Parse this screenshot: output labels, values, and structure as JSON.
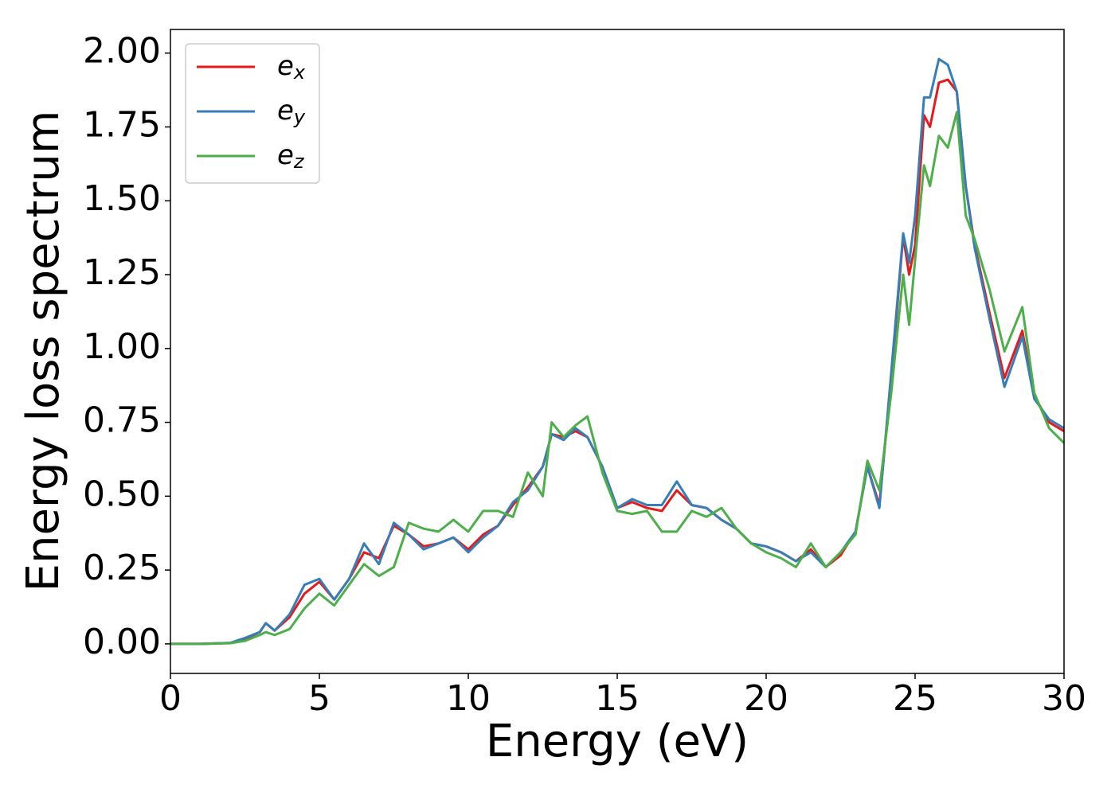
{
  "chart_data": {
    "type": "line",
    "xlabel": "Energy (eV)",
    "ylabel": "Energy loss spectrum",
    "xlim": [
      0,
      30
    ],
    "ylim": [
      -0.1,
      2.08
    ],
    "xticks": [
      0,
      5,
      10,
      15,
      20,
      25,
      30
    ],
    "yticks": [
      {
        "value": 0,
        "label": "0.00"
      },
      {
        "value": 0.25,
        "label": "0.25"
      },
      {
        "value": 0.5,
        "label": "0.50"
      },
      {
        "value": 0.75,
        "label": "0.75"
      },
      {
        "value": 1,
        "label": "1.00"
      },
      {
        "value": 1.25,
        "label": "1.25"
      },
      {
        "value": 1.5,
        "label": "1.50"
      },
      {
        "value": 1.75,
        "label": "1.75"
      },
      {
        "value": 2,
        "label": "2.00"
      }
    ],
    "legend": "upper left",
    "x": [
      0,
      1,
      2,
      2.5,
      3,
      3.2,
      3.5,
      4,
      4.5,
      5,
      5.5,
      6,
      6.5,
      7,
      7.5,
      8,
      8.5,
      9,
      9.5,
      10,
      10.5,
      11,
      11.5,
      12,
      12.5,
      12.8,
      13.2,
      13.6,
      14,
      14.5,
      15,
      15.5,
      16,
      16.5,
      17,
      17.5,
      18,
      18.5,
      19,
      19.5,
      20,
      20.5,
      21,
      21.5,
      22,
      22.5,
      23,
      23.4,
      23.8,
      24.2,
      24.6,
      24.8,
      25,
      25.3,
      25.5,
      25.8,
      26.1,
      26.4,
      26.7,
      27,
      27.5,
      28,
      28.6,
      29,
      29.5,
      30
    ],
    "series": [
      {
        "name": "ex",
        "color": "#e41a1c",
        "values": [
          0,
          0,
          0.003,
          0.015,
          0.04,
          0.07,
          0.045,
          0.09,
          0.17,
          0.21,
          0.15,
          0.22,
          0.31,
          0.29,
          0.4,
          0.37,
          0.33,
          0.34,
          0.36,
          0.32,
          0.37,
          0.4,
          0.47,
          0.53,
          0.6,
          0.71,
          0.7,
          0.72,
          0.7,
          0.6,
          0.46,
          0.48,
          0.46,
          0.45,
          0.52,
          0.47,
          0.46,
          0.42,
          0.39,
          0.34,
          0.33,
          0.31,
          0.28,
          0.32,
          0.26,
          0.3,
          0.38,
          0.6,
          0.47,
          0.9,
          1.38,
          1.25,
          1.35,
          1.79,
          1.75,
          1.9,
          1.91,
          1.87,
          1.55,
          1.35,
          1.12,
          0.9,
          1.06,
          0.84,
          0.75,
          0.72
        ]
      },
      {
        "name": "ey",
        "color": "#377eb8",
        "values": [
          0,
          0,
          0.003,
          0.02,
          0.04,
          0.07,
          0.045,
          0.1,
          0.2,
          0.22,
          0.15,
          0.22,
          0.34,
          0.27,
          0.41,
          0.37,
          0.32,
          0.34,
          0.36,
          0.31,
          0.36,
          0.4,
          0.48,
          0.52,
          0.6,
          0.71,
          0.69,
          0.73,
          0.7,
          0.6,
          0.46,
          0.49,
          0.47,
          0.47,
          0.55,
          0.47,
          0.46,
          0.42,
          0.39,
          0.34,
          0.33,
          0.31,
          0.28,
          0.31,
          0.26,
          0.31,
          0.38,
          0.6,
          0.46,
          0.92,
          1.39,
          1.29,
          1.45,
          1.85,
          1.85,
          1.98,
          1.96,
          1.87,
          1.55,
          1.34,
          1.1,
          0.87,
          1.04,
          0.83,
          0.76,
          0.73
        ]
      },
      {
        "name": "ez",
        "color": "#4daf4a",
        "values": [
          0,
          0,
          0.002,
          0.01,
          0.03,
          0.04,
          0.03,
          0.05,
          0.12,
          0.17,
          0.13,
          0.2,
          0.27,
          0.23,
          0.26,
          0.41,
          0.39,
          0.38,
          0.42,
          0.38,
          0.45,
          0.45,
          0.43,
          0.58,
          0.5,
          0.75,
          0.7,
          0.74,
          0.77,
          0.58,
          0.45,
          0.44,
          0.45,
          0.38,
          0.38,
          0.45,
          0.43,
          0.46,
          0.39,
          0.34,
          0.31,
          0.29,
          0.26,
          0.34,
          0.26,
          0.31,
          0.37,
          0.62,
          0.52,
          0.85,
          1.25,
          1.08,
          1.3,
          1.62,
          1.55,
          1.72,
          1.68,
          1.8,
          1.45,
          1.37,
          1.2,
          0.99,
          1.14,
          0.85,
          0.73,
          0.68
        ]
      }
    ]
  }
}
